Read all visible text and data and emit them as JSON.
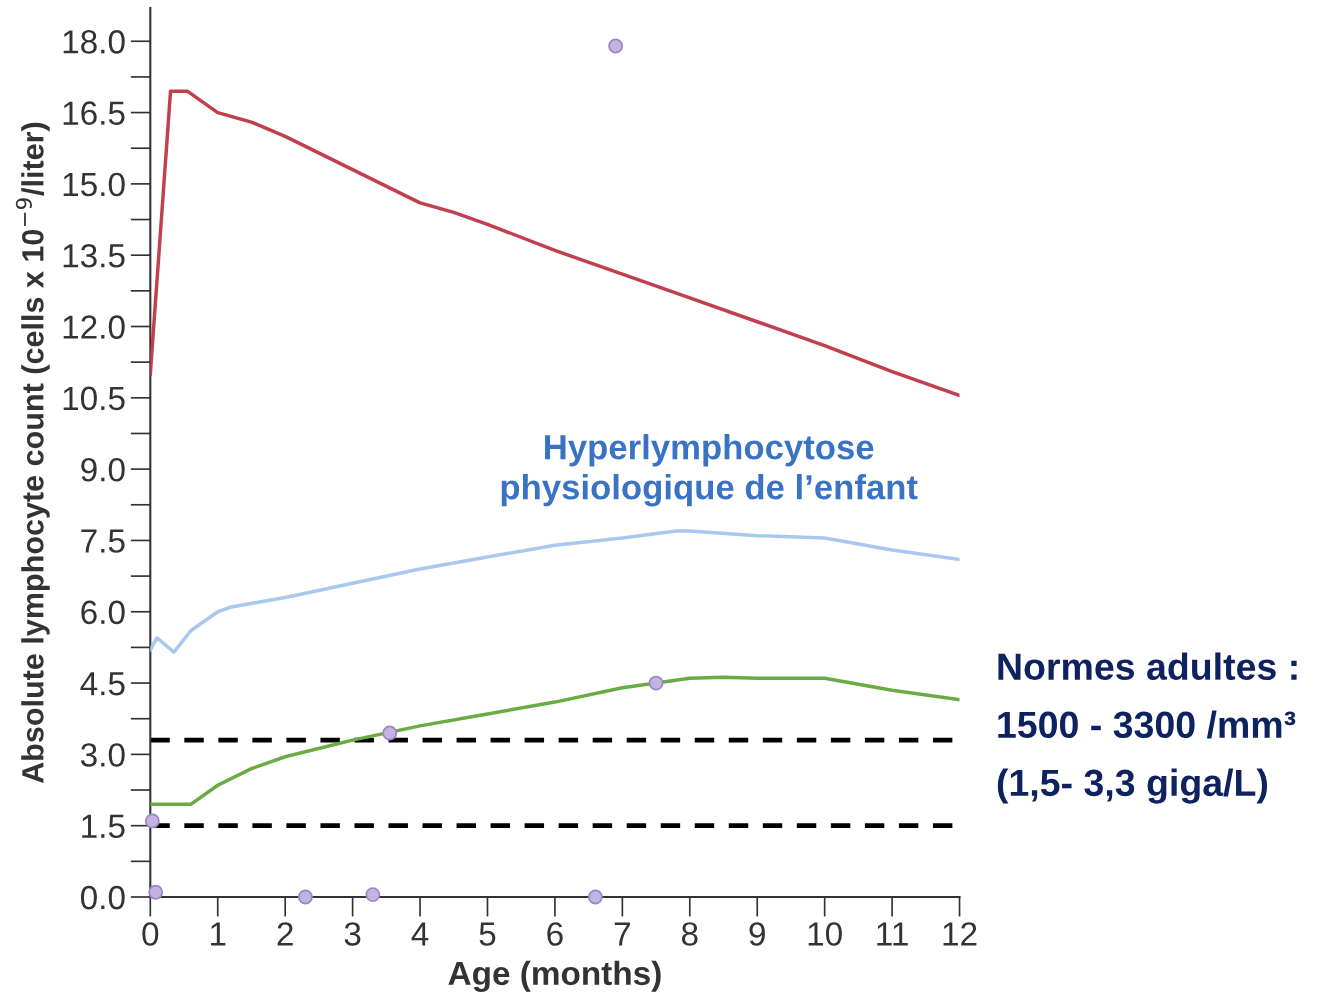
{
  "chart_data": {
    "type": "line",
    "xlabel": "Age (months)",
    "ylabel": "Absolute lymphocyte count (cells x 10$^{−9}$/liter)",
    "xlim": [
      0,
      12
    ],
    "xticks": [
      0,
      1,
      2,
      3,
      4,
      5,
      6,
      7,
      8,
      9,
      10,
      11,
      12
    ],
    "ylim": [
      0,
      18.7
    ],
    "yticks": [
      {
        "value": 0,
        "label": "0.0"
      },
      {
        "value": 1.5,
        "label": "1.5"
      },
      {
        "value": 3,
        "label": "3.0"
      },
      {
        "value": 4.5,
        "label": "4.5"
      },
      {
        "value": 6,
        "label": "6.0"
      },
      {
        "value": 7.5,
        "label": "7.5"
      },
      {
        "value": 9,
        "label": "9.0"
      },
      {
        "value": 10.5,
        "label": "10.5"
      },
      {
        "value": 12,
        "label": "12.0"
      },
      {
        "value": 13.5,
        "label": "13.5"
      },
      {
        "value": 15,
        "label": "15.0"
      },
      {
        "value": 16.5,
        "label": "16.5"
      },
      {
        "value": 18,
        "label": "18.0"
      }
    ],
    "grid": false,
    "legend": false,
    "series": [
      {
        "color": "#c0404f",
        "x": [
          0,
          0.3,
          0.55,
          0.7,
          1.0,
          1.5,
          2,
          3,
          4,
          4.5,
          5,
          6,
          7,
          8,
          9,
          10,
          11,
          12
        ],
        "values": [
          11.0,
          16.95,
          16.95,
          16.8,
          16.5,
          16.3,
          16.0,
          15.3,
          14.6,
          14.4,
          14.15,
          13.6,
          13.1,
          12.6,
          12.1,
          11.6,
          11.05,
          10.55
        ]
      },
      {
        "color": "#a9c8ee",
        "x": [
          0,
          0.1,
          0.35,
          0.6,
          1.0,
          1.2,
          2,
          3,
          4,
          5,
          6,
          7,
          7.8,
          8,
          9,
          10,
          11,
          12
        ],
        "values": [
          5.2,
          5.45,
          5.15,
          5.6,
          6.0,
          6.1,
          6.3,
          6.6,
          6.9,
          7.15,
          7.4,
          7.55,
          7.7,
          7.7,
          7.6,
          7.55,
          7.3,
          7.1
        ]
      },
      {
        "color": "#6aab45",
        "x": [
          0,
          0.6,
          1,
          1.5,
          2,
          3,
          4,
          5,
          6,
          7,
          8,
          8.5,
          9,
          10,
          11,
          12
        ],
        "values": [
          1.95,
          1.95,
          2.35,
          2.7,
          2.95,
          3.3,
          3.6,
          3.85,
          4.1,
          4.4,
          4.6,
          4.62,
          4.6,
          4.6,
          4.35,
          4.15
        ]
      },
      {
        "type": "scatter",
        "color": "#c3b3e0",
        "x": [
          6.9,
          0.03,
          0.08,
          2.3,
          3.3,
          3.55,
          6.6,
          7.5
        ],
        "values": [
          17.9,
          1.6,
          0.1,
          0.0,
          0.05,
          3.45,
          0.0,
          4.5
        ]
      }
    ],
    "ref_lines": [
      {
        "axis": "y",
        "value": 3.3,
        "color": "#000000",
        "line_style": "dashed"
      },
      {
        "axis": "y",
        "value": 1.5,
        "color": "#000000",
        "line_style": "dashed"
      }
    ],
    "annotations": [
      "Hyperlymphocytose\nphysiologique de l’enfant",
      "Normes adultes :\n1500 - 3300 /mm³\n(1,5- 3,3 giga/L)"
    ]
  }
}
